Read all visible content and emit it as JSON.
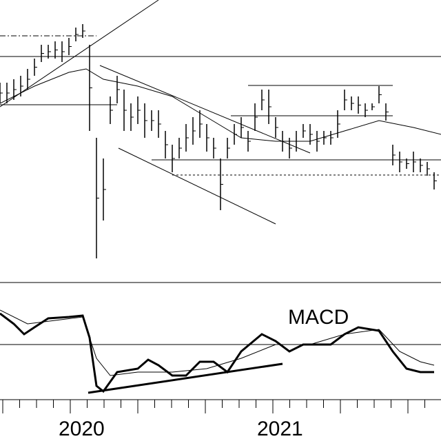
{
  "chart_data": {
    "type": "stock",
    "xlim": [
      0,
      640
    ],
    "ylim": [
      0,
      410
    ],
    "macd_ylim": [
      0,
      170
    ],
    "macd_zero": 80,
    "x": [
      0,
      10,
      20,
      30,
      40,
      50,
      60,
      70,
      80,
      90,
      100,
      110,
      120,
      130,
      140,
      150,
      160,
      170,
      180,
      190,
      200,
      210,
      220,
      230,
      240,
      250,
      260,
      270,
      280,
      290,
      300,
      310,
      320,
      330,
      340,
      350,
      360,
      370,
      380,
      390,
      400,
      410,
      420,
      430,
      440,
      450,
      460,
      470,
      480,
      490,
      500,
      510,
      520,
      530,
      540,
      550,
      560,
      570,
      580,
      590,
      600,
      610,
      620,
      630
    ],
    "high": [
      290,
      290,
      295,
      300,
      310,
      325,
      345,
      345,
      350,
      350,
      355,
      370,
      375,
      345,
      210,
      180,
      270,
      300,
      280,
      260,
      270,
      260,
      250,
      250,
      220,
      200,
      210,
      230,
      240,
      250,
      230,
      210,
      180,
      210,
      230,
      240,
      220,
      260,
      280,
      280,
      240,
      220,
      210,
      220,
      230,
      230,
      220,
      220,
      220,
      250,
      280,
      270,
      270,
      260,
      260,
      285,
      260,
      200,
      190,
      180,
      190,
      180,
      175,
      160
    ],
    "low": [
      260,
      260,
      265,
      270,
      280,
      300,
      320,
      325,
      325,
      320,
      330,
      350,
      355,
      220,
      35,
      90,
      230,
      260,
      220,
      220,
      230,
      210,
      220,
      210,
      180,
      160,
      180,
      190,
      200,
      210,
      190,
      180,
      105,
      180,
      200,
      210,
      190,
      220,
      250,
      230,
      210,
      190,
      180,
      190,
      210,
      200,
      190,
      200,
      200,
      210,
      250,
      250,
      245,
      240,
      250,
      260,
      235,
      170,
      160,
      165,
      160,
      160,
      155,
      135
    ],
    "moving_average": {
      "x": [
        0,
        50,
        100,
        125,
        150,
        200,
        250,
        300,
        350,
        400,
        450,
        500,
        550,
        600,
        640
      ],
      "values": [
        260,
        285,
        305,
        310,
        295,
        285,
        270,
        240,
        210,
        205,
        205,
        220,
        235,
        225,
        215
      ]
    },
    "macd": {
      "label": "MACD",
      "line": {
        "x": [
          0,
          20,
          35,
          50,
          70,
          100,
          120,
          130,
          140,
          150,
          170,
          200,
          215,
          230,
          250,
          270,
          290,
          310,
          330,
          350,
          380,
          400,
          420,
          440,
          480,
          500,
          520,
          550,
          570,
          590,
          610,
          630
        ],
        "values": [
          125,
          110,
          95,
          105,
          118,
          120,
          122,
          90,
          20,
          12,
          40,
          45,
          58,
          50,
          35,
          35,
          55,
          55,
          40,
          70,
          95,
          85,
          70,
          80,
          80,
          95,
          105,
          100,
          70,
          45,
          40,
          40
        ]
      },
      "signal": {
        "x": [
          0,
          40,
          80,
          120,
          140,
          160,
          200,
          250,
          300,
          350,
          400,
          450,
          500,
          550,
          580,
          610,
          630
        ],
        "values": [
          130,
          110,
          115,
          120,
          60,
          35,
          40,
          40,
          45,
          60,
          80,
          80,
          95,
          102,
          70,
          55,
          50
        ]
      }
    },
    "x_labels": [
      "2020",
      "2021"
    ]
  }
}
